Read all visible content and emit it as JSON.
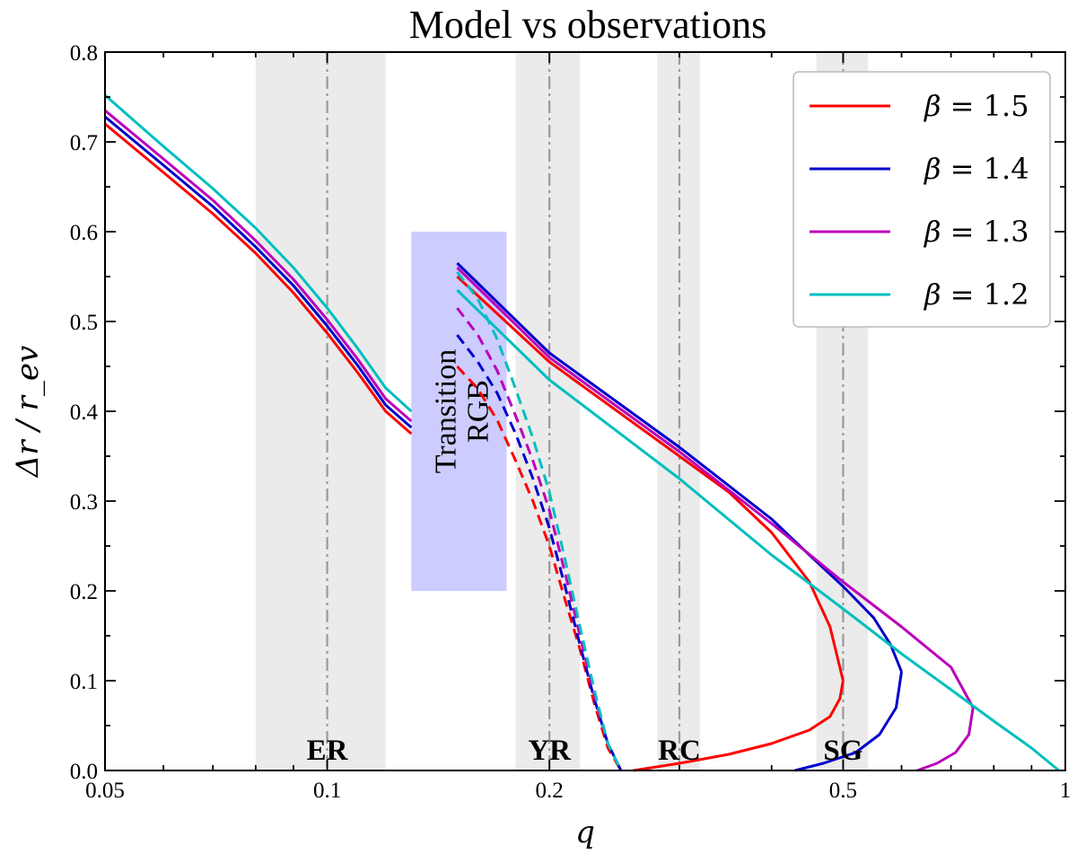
{
  "chart_data": {
    "type": "line",
    "title": "Model vs observations",
    "xlabel": "q",
    "ylabel": "Δr / r_ev",
    "xscale": "log",
    "xlim": [
      0.05,
      1
    ],
    "ylim": [
      0,
      0.8
    ],
    "xticks": [
      {
        "value": 0.05,
        "label": "0.05"
      },
      {
        "value": 0.1,
        "label": "0.1"
      },
      {
        "value": 0.2,
        "label": "0.2"
      },
      {
        "value": 0.5,
        "label": "0.5"
      },
      {
        "value": 1,
        "label": "1"
      }
    ],
    "yticks": [
      {
        "value": 0.0,
        "label": "0.0"
      },
      {
        "value": 0.1,
        "label": "0.1"
      },
      {
        "value": 0.2,
        "label": "0.2"
      },
      {
        "value": 0.3,
        "label": "0.3"
      },
      {
        "value": 0.4,
        "label": "0.4"
      },
      {
        "value": 0.5,
        "label": "0.5"
      },
      {
        "value": 0.6,
        "label": "0.6"
      },
      {
        "value": 0.7,
        "label": "0.7"
      },
      {
        "value": 0.8,
        "label": "0.8"
      }
    ],
    "bands": [
      {
        "label": "ER",
        "q_center": 0.1,
        "q_min": 0.08,
        "q_max": 0.12
      },
      {
        "label": "YR",
        "q_center": 0.2,
        "q_min": 0.18,
        "q_max": 0.22
      },
      {
        "label": "RC",
        "q_center": 0.3,
        "q_min": 0.28,
        "q_max": 0.32
      },
      {
        "label": "SG",
        "q_center": 0.5,
        "q_min": 0.46,
        "q_max": 0.54
      }
    ],
    "transition_region": {
      "label_line1": "Transition",
      "label_line2": "RGB",
      "q_min": 0.13,
      "q_max": 0.175,
      "y_min": 0.2,
      "y_max": 0.6,
      "color": "#ccccff"
    },
    "legend": {
      "position": "top-right",
      "prefix": "β =",
      "entries": [
        "1.5",
        "1.4",
        "1.3",
        "1.2"
      ]
    },
    "series": [
      {
        "name": "β = 1.5",
        "beta": "1.5",
        "color": "#ff0000",
        "early": [
          [
            0.05,
            0.72
          ],
          [
            0.06,
            0.666
          ],
          [
            0.07,
            0.62
          ],
          [
            0.08,
            0.576
          ],
          [
            0.09,
            0.532
          ],
          [
            0.1,
            0.487
          ],
          [
            0.11,
            0.443
          ],
          [
            0.12,
            0.4
          ],
          [
            0.13,
            0.375
          ]
        ],
        "transition_dashed": [
          [
            0.15,
            0.45
          ],
          [
            0.16,
            0.425
          ],
          [
            0.17,
            0.39
          ],
          [
            0.18,
            0.345
          ],
          [
            0.19,
            0.3
          ],
          [
            0.2,
            0.25
          ],
          [
            0.21,
            0.19
          ],
          [
            0.22,
            0.135
          ],
          [
            0.23,
            0.075
          ],
          [
            0.24,
            0.025
          ],
          [
            0.25,
            0.0
          ]
        ],
        "late_upper": [
          [
            0.15,
            0.55
          ],
          [
            0.2,
            0.455
          ],
          [
            0.3,
            0.35
          ],
          [
            0.35,
            0.31
          ],
          [
            0.4,
            0.265
          ],
          [
            0.45,
            0.21
          ],
          [
            0.48,
            0.16
          ],
          [
            0.5,
            0.1
          ]
        ],
        "late_lower": [
          [
            0.5,
            0.1
          ],
          [
            0.495,
            0.08
          ],
          [
            0.48,
            0.06
          ],
          [
            0.45,
            0.045
          ],
          [
            0.4,
            0.03
          ],
          [
            0.35,
            0.018
          ],
          [
            0.3,
            0.008
          ],
          [
            0.26,
            0.0
          ]
        ]
      },
      {
        "name": "β = 1.4",
        "beta": "1.4",
        "color": "#0000cc",
        "early": [
          [
            0.05,
            0.728
          ],
          [
            0.06,
            0.674
          ],
          [
            0.07,
            0.628
          ],
          [
            0.08,
            0.583
          ],
          [
            0.09,
            0.54
          ],
          [
            0.1,
            0.495
          ],
          [
            0.11,
            0.451
          ],
          [
            0.12,
            0.407
          ],
          [
            0.13,
            0.382
          ]
        ],
        "transition_dashed": [
          [
            0.15,
            0.485
          ],
          [
            0.16,
            0.455
          ],
          [
            0.17,
            0.42
          ],
          [
            0.18,
            0.375
          ],
          [
            0.19,
            0.325
          ],
          [
            0.2,
            0.27
          ],
          [
            0.21,
            0.205
          ],
          [
            0.22,
            0.14
          ],
          [
            0.23,
            0.08
          ],
          [
            0.24,
            0.03
          ],
          [
            0.25,
            0.0
          ]
        ],
        "late_upper": [
          [
            0.15,
            0.565
          ],
          [
            0.2,
            0.465
          ],
          [
            0.3,
            0.36
          ],
          [
            0.4,
            0.28
          ],
          [
            0.45,
            0.24
          ],
          [
            0.5,
            0.205
          ],
          [
            0.55,
            0.17
          ],
          [
            0.58,
            0.14
          ],
          [
            0.6,
            0.11
          ]
        ],
        "late_lower": [
          [
            0.6,
            0.11
          ],
          [
            0.59,
            0.07
          ],
          [
            0.56,
            0.04
          ],
          [
            0.52,
            0.02
          ],
          [
            0.47,
            0.008
          ],
          [
            0.43,
            0.0
          ]
        ]
      },
      {
        "name": "β = 1.3",
        "beta": "1.3",
        "color": "#bb00bb",
        "early": [
          [
            0.05,
            0.735
          ],
          [
            0.06,
            0.681
          ],
          [
            0.07,
            0.635
          ],
          [
            0.08,
            0.59
          ],
          [
            0.09,
            0.547
          ],
          [
            0.1,
            0.502
          ],
          [
            0.11,
            0.458
          ],
          [
            0.12,
            0.414
          ],
          [
            0.13,
            0.389
          ]
        ],
        "transition_dashed": [
          [
            0.15,
            0.515
          ],
          [
            0.16,
            0.485
          ],
          [
            0.17,
            0.445
          ],
          [
            0.18,
            0.395
          ],
          [
            0.19,
            0.345
          ],
          [
            0.2,
            0.29
          ],
          [
            0.21,
            0.22
          ],
          [
            0.22,
            0.15
          ],
          [
            0.23,
            0.085
          ],
          [
            0.24,
            0.03
          ],
          [
            0.25,
            0.0
          ]
        ],
        "late_upper": [
          [
            0.15,
            0.56
          ],
          [
            0.2,
            0.46
          ],
          [
            0.3,
            0.355
          ],
          [
            0.4,
            0.275
          ],
          [
            0.5,
            0.21
          ],
          [
            0.6,
            0.16
          ],
          [
            0.7,
            0.115
          ],
          [
            0.75,
            0.07
          ]
        ],
        "late_lower": [
          [
            0.75,
            0.07
          ],
          [
            0.74,
            0.04
          ],
          [
            0.71,
            0.02
          ],
          [
            0.67,
            0.008
          ],
          [
            0.63,
            0.0
          ]
        ]
      },
      {
        "name": "β = 1.2",
        "beta": "1.2",
        "color": "#00bfbf",
        "early": [
          [
            0.05,
            0.752
          ],
          [
            0.06,
            0.695
          ],
          [
            0.07,
            0.648
          ],
          [
            0.08,
            0.604
          ],
          [
            0.09,
            0.56
          ],
          [
            0.1,
            0.515
          ],
          [
            0.11,
            0.47
          ],
          [
            0.12,
            0.426
          ],
          [
            0.13,
            0.4
          ]
        ],
        "transition_dashed": [
          [
            0.15,
            0.555
          ],
          [
            0.16,
            0.525
          ],
          [
            0.17,
            0.48
          ],
          [
            0.18,
            0.425
          ],
          [
            0.19,
            0.37
          ],
          [
            0.2,
            0.31
          ],
          [
            0.21,
            0.235
          ],
          [
            0.22,
            0.16
          ],
          [
            0.23,
            0.09
          ],
          [
            0.24,
            0.03
          ],
          [
            0.25,
            0.0
          ]
        ],
        "late_upper": [
          [
            0.15,
            0.535
          ],
          [
            0.2,
            0.435
          ],
          [
            0.3,
            0.325
          ],
          [
            0.4,
            0.24
          ],
          [
            0.5,
            0.18
          ],
          [
            0.6,
            0.13
          ],
          [
            0.7,
            0.09
          ],
          [
            0.8,
            0.055
          ],
          [
            0.9,
            0.025
          ],
          [
            0.98,
            0.0
          ]
        ],
        "late_lower": []
      }
    ]
  }
}
